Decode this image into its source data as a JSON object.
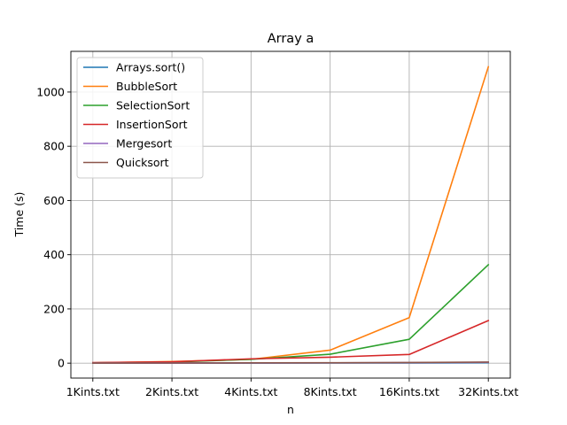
{
  "chart_data": {
    "type": "line",
    "title": "Array a",
    "xlabel": "n",
    "ylabel": "Time (s)",
    "categories": [
      "1Kints.txt",
      "2Kints.txt",
      "4Kints.txt",
      "8Kints.txt",
      "16Kints.txt",
      "32Kints.txt"
    ],
    "ylim": [
      -55,
      1150
    ],
    "yticks": [
      0,
      200,
      400,
      600,
      800,
      1000
    ],
    "grid": true,
    "legend_position": "top-left",
    "series": [
      {
        "name": "Arrays.sort()",
        "color": "#1f77b4",
        "values": [
          0.1,
          0.2,
          0.3,
          0.5,
          0.8,
          1.5
        ]
      },
      {
        "name": "BubbleSort",
        "color": "#ff7f0e",
        "values": [
          1,
          6,
          14,
          48,
          168,
          1093
        ]
      },
      {
        "name": "SelectionSort",
        "color": "#2ca02c",
        "values": [
          1,
          4,
          14,
          33,
          88,
          363
        ]
      },
      {
        "name": "InsertionSort",
        "color": "#d62728",
        "values": [
          2,
          5,
          16,
          22,
          32,
          157
        ]
      },
      {
        "name": "Mergesort",
        "color": "#9467bd",
        "values": [
          0.2,
          0.4,
          0.8,
          1.2,
          2.0,
          3.0
        ]
      },
      {
        "name": "Quicksort",
        "color": "#8c564b",
        "values": [
          0.3,
          0.5,
          1.0,
          1.5,
          2.5,
          4.0
        ]
      }
    ]
  }
}
